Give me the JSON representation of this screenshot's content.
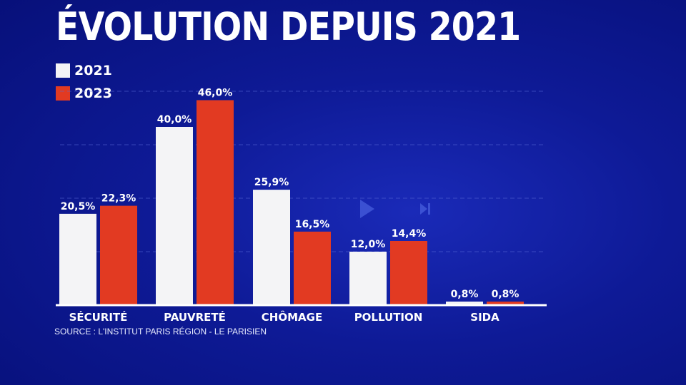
{
  "chart_data": {
    "type": "bar",
    "title": "ÉVOLUTION DEPUIS 2021",
    "categories": [
      "SÉCURITÉ",
      "PAUVRETÉ",
      "CHÔMAGE",
      "POLLUTION",
      "SIDA"
    ],
    "series": [
      {
        "name": "2021",
        "values": [
          20.5,
          40.0,
          25.9,
          12.0,
          0.8
        ],
        "labels": [
          "20,5%",
          "40,0%",
          "25,9%",
          "12,0%",
          "0,8%"
        ],
        "color": "#f4f4f6"
      },
      {
        "name": "2023",
        "values": [
          22.3,
          46.0,
          16.5,
          14.4,
          0.8
        ],
        "labels": [
          "22,3%",
          "46,0%",
          "16,5%",
          "14,4%",
          "0,8%"
        ],
        "color": "#e23a22"
      }
    ],
    "ylim": [
      0,
      50
    ],
    "grid": true,
    "legend": "top-left"
  },
  "source": "SOURCE  : L'INSTITUT PARIS RÉGION - LE PARISIEN"
}
